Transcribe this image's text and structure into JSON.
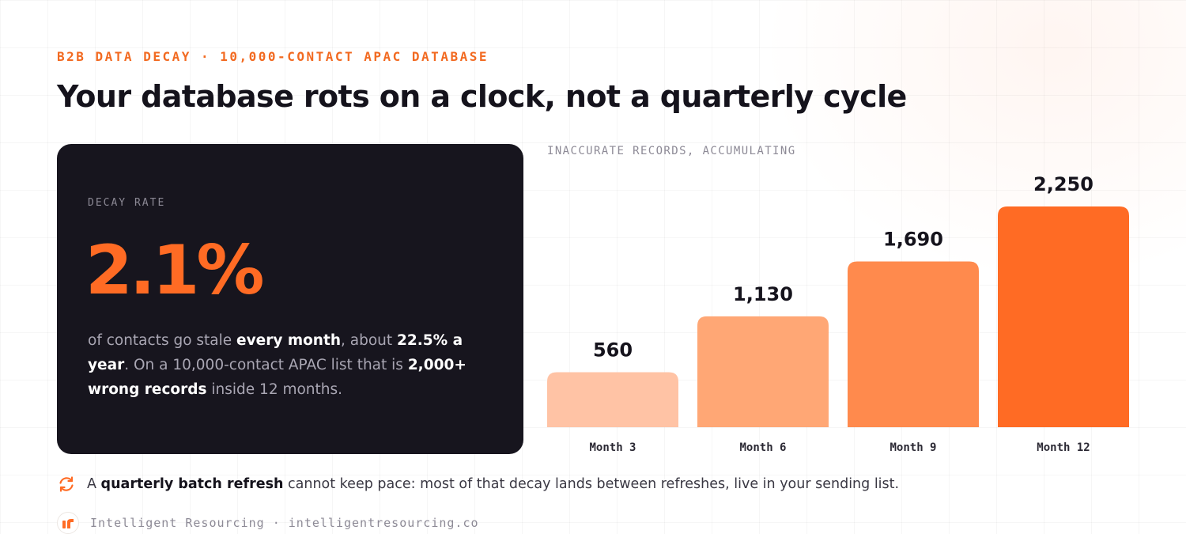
{
  "header": {
    "eyebrow": "B2B DATA DECAY · 10,000-CONTACT APAC DATABASE",
    "title": "Your database rots on a clock, not a quarterly cycle"
  },
  "card": {
    "label": "DECAY RATE",
    "value": "2.1%",
    "desc": {
      "t1": "of contacts go stale ",
      "b1": "every month",
      "t2": ", about ",
      "b2": "22.5% a year",
      "t3": ". On a 10,000-contact APAC list that is ",
      "b3": "2,000+ wrong records",
      "t4": " inside 12 months."
    }
  },
  "chart_data": {
    "type": "bar",
    "title": "INACCURATE RECORDS, ACCUMULATING",
    "categories": [
      "Month 3",
      "Month 6",
      "Month 9",
      "Month 12"
    ],
    "values": [
      560,
      1130,
      1690,
      2250
    ],
    "value_labels": [
      "560",
      "1,130",
      "1,690",
      "2,250"
    ],
    "ylim": [
      0,
      2250
    ],
    "grid": false,
    "legend": "none",
    "colors": [
      "#ffc3a5",
      "#ffa775",
      "#ff8a4d",
      "#ff6b24"
    ]
  },
  "note": {
    "icon": "refresh-icon",
    "t1": "A ",
    "b1": "quarterly batch refresh",
    "t2": " cannot keep pace: most of that decay lands between refreshes, live in your sending list."
  },
  "footer": {
    "logo_icon": "intelligent-resourcing-logo-icon",
    "text": "Intelligent Resourcing · intelligentresourcing.co"
  },
  "colors": {
    "accent": "#ff6b24",
    "card_bg": "#17151e",
    "eyebrow": "#f26a21"
  }
}
